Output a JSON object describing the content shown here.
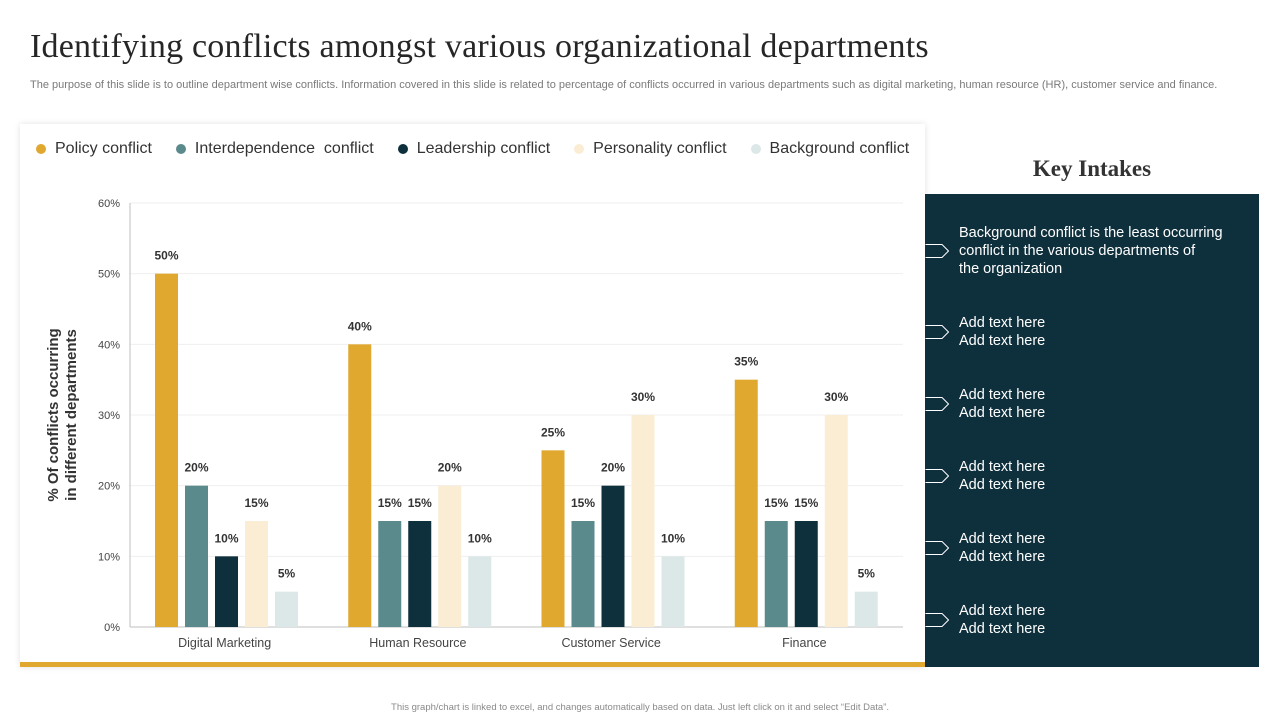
{
  "title": "Identifying conflicts amongst various organizational departments",
  "subtitle": "The purpose of this slide is to outline department wise conflicts. Information covered in this slide is related to percentage of conflicts occurred in various departments such as digital marketing, human resource (HR), customer service and finance.",
  "legend": [
    {
      "label": "Policy conflict",
      "color": "#E0A82E"
    },
    {
      "label": "Interdependence  conflict",
      "color": "#5B8A8C"
    },
    {
      "label": "Leadership conflict",
      "color": "#0E2F3C"
    },
    {
      "label": "Personality conflict",
      "color": "#FAEDD3"
    },
    {
      "label": "Background conflict",
      "color": "#DCE7E8"
    }
  ],
  "chart_data": {
    "type": "bar",
    "categories": [
      "Digital Marketing",
      "Human Resource",
      "Customer Service",
      "Finance"
    ],
    "series": [
      {
        "name": "Policy conflict",
        "color": "#E0A82E",
        "values": [
          50,
          40,
          25,
          35
        ]
      },
      {
        "name": "Interdependence  conflict",
        "color": "#5B8A8C",
        "values": [
          20,
          15,
          15,
          15
        ]
      },
      {
        "name": "Leadership conflict",
        "color": "#0E2F3C",
        "values": [
          10,
          15,
          20,
          15
        ]
      },
      {
        "name": "Personality conflict",
        "color": "#FAEDD3",
        "values": [
          15,
          20,
          30,
          30
        ]
      },
      {
        "name": "Background conflict",
        "color": "#DCE7E8",
        "values": [
          5,
          10,
          10,
          5
        ]
      }
    ],
    "ylabel": "% Of conflicts occurring in different departments",
    "ylabel_lines": [
      "% Of conflicts occurring",
      "in different departments"
    ],
    "ylim": [
      0,
      60
    ],
    "yticks": [
      "0%",
      "10%",
      "20%",
      "30%",
      "40%",
      "50%",
      "60%"
    ],
    "value_suffix": "%",
    "grid": true
  },
  "key_intakes": {
    "title": "Key Intakes",
    "items": [
      {
        "lines": [
          "Background conflict is the least occurring",
          "conflict in the various departments of",
          "the organization"
        ]
      },
      {
        "lines": [
          "Add text here",
          "Add text here"
        ]
      },
      {
        "lines": [
          "Add text here",
          "Add text here"
        ]
      },
      {
        "lines": [
          "Add text here",
          "Add text here"
        ]
      },
      {
        "lines": [
          "Add text here",
          "Add text here"
        ]
      },
      {
        "lines": [
          "Add text here",
          "Add text here"
        ]
      }
    ]
  },
  "footnote": "This graph/chart is linked to excel, and changes automatically based on data. Just left click on it and select “Edit Data”."
}
